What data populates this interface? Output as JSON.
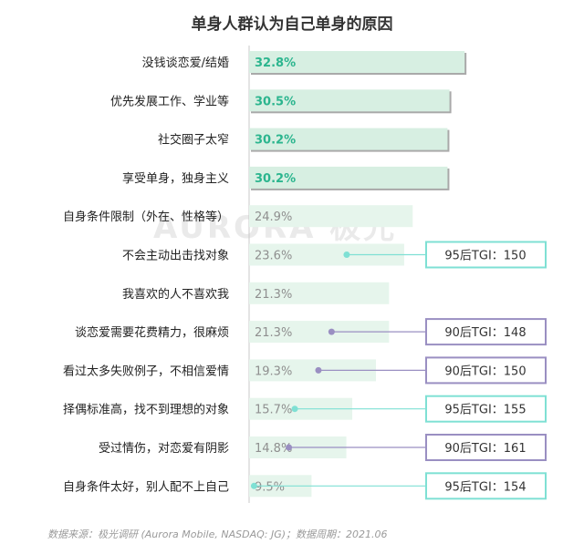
{
  "title": "单身人群认为自己单身的原因",
  "source_note": "数据来源：极光调研 (Aurora Mobile, NASDAQ: JG)；数据周期：2021.06",
  "watermark": "AURORA 极光",
  "chart_data": {
    "type": "bar",
    "orientation": "horizontal",
    "title": "单身人群认为自己单身的原因",
    "unit": "%",
    "categories": [
      "没钱谈恋爱/结婚",
      "优先发展工作、学业等",
      "社交圈子太窄",
      "享受单身，独身主义",
      "自身条件限制（外在、性格等）",
      "不会主动出击找对象",
      "我喜欢的人不喜欢我",
      "谈恋爱需要花费精力，很麻烦",
      "看过太多失败例子，不相信爱情",
      "择偶标准高，找不到理想的对象",
      "受过情伤，对恋爱有阴影",
      "自身条件太好，别人配不上自己"
    ],
    "values": [
      32.8,
      30.5,
      30.2,
      30.2,
      24.9,
      23.6,
      21.3,
      21.3,
      19.3,
      15.7,
      14.8,
      9.5
    ],
    "value_labels": [
      "32.8%",
      "30.5%",
      "30.2%",
      "30.2%",
      "24.9%",
      "23.6%",
      "21.3%",
      "21.3%",
      "19.3%",
      "15.7%",
      "14.8%",
      "9.5%"
    ],
    "highlight_top": 4,
    "colors": {
      "bar_top": "#d7efe2",
      "bar_top_border": "#a9a9a9",
      "bar_rest": "#e6f5ec",
      "value_top": "#2bb58e",
      "value_rest": "#8f8f8f",
      "axis": "#c8c8c8",
      "callout_95": "#7fe0d4",
      "callout_90": "#9a8fc2"
    },
    "annotations": [
      {
        "index": 5,
        "text": "95后TGI：150",
        "group": "95"
      },
      {
        "index": 7,
        "text": "90后TGI：148",
        "group": "90"
      },
      {
        "index": 8,
        "text": "90后TGI：150",
        "group": "90"
      },
      {
        "index": 9,
        "text": "95后TGI：155",
        "group": "95"
      },
      {
        "index": 10,
        "text": "90后TGI：161",
        "group": "90"
      },
      {
        "index": 11,
        "text": "95后TGI：154",
        "group": "95"
      }
    ]
  }
}
